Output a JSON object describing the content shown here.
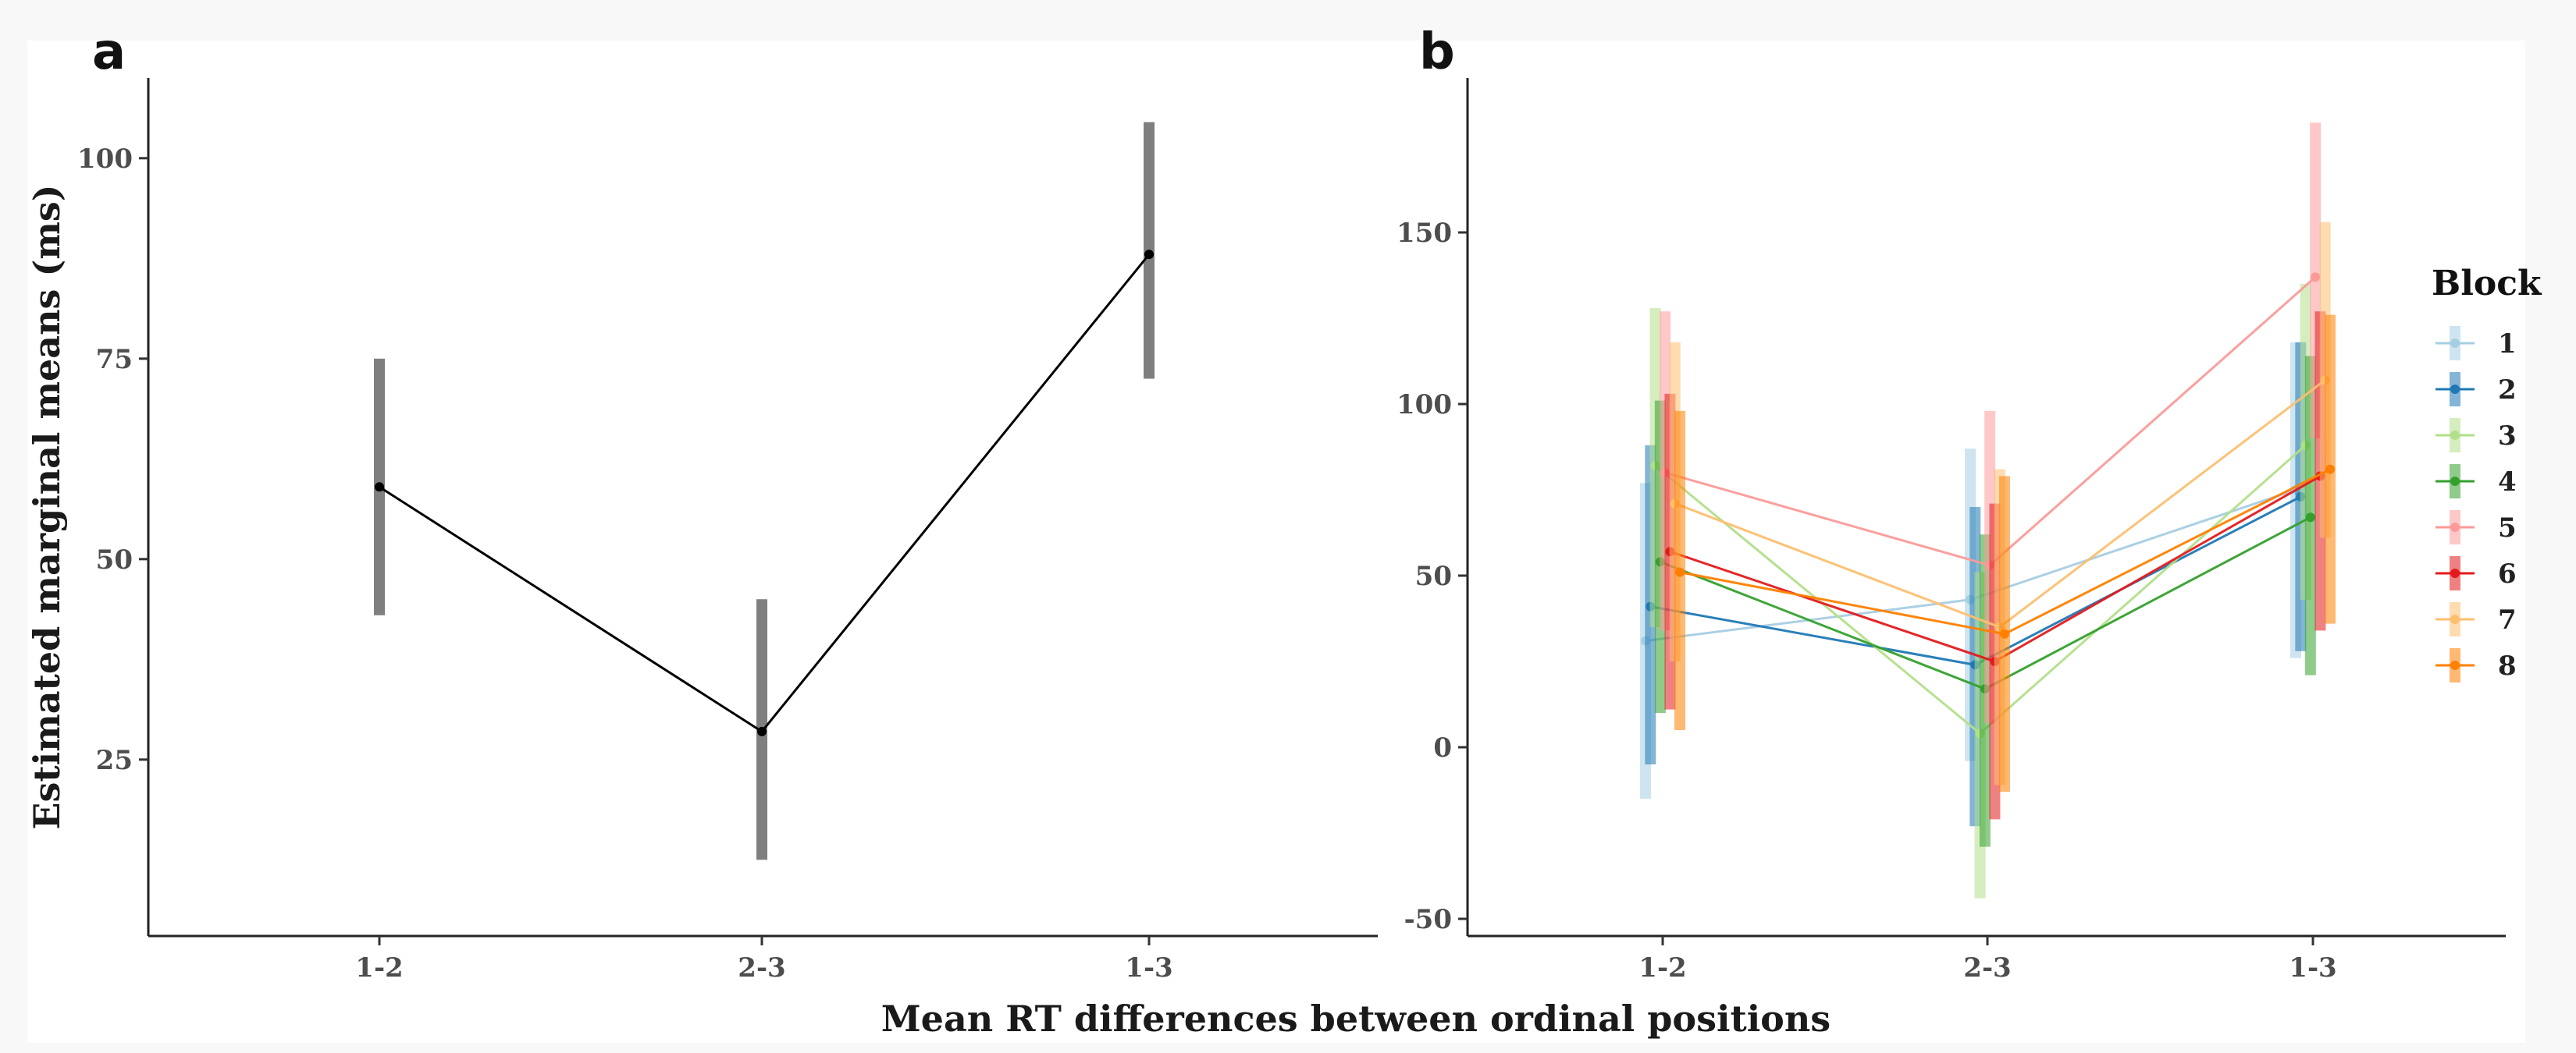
{
  "xlabel": "Mean RT differences between ordinal positions",
  "chart_data": [
    {
      "type": "line",
      "panel": "a",
      "ylabel": "Estimated marginal means (ms)",
      "categories": [
        "1-2",
        "2-3",
        "1-3"
      ],
      "ylim": [
        3,
        110
      ],
      "yticks": [
        25,
        50,
        75,
        100
      ],
      "values": [
        59,
        28.5,
        88
      ],
      "ci_low": [
        43,
        12.5,
        72.5
      ],
      "ci_high": [
        75,
        45,
        104.5
      ],
      "grid": false
    },
    {
      "type": "line",
      "panel": "b",
      "legend_title": "Block",
      "legend_position": "right",
      "categories": [
        "1-2",
        "2-3",
        "1-3"
      ],
      "ylim": [
        -55,
        195
      ],
      "yticks": [
        -50,
        0,
        50,
        100,
        150
      ],
      "grid": false,
      "series": [
        {
          "name": "1",
          "color": "#a6cee3",
          "values": [
            31,
            43,
            75
          ],
          "ci_low": [
            -15,
            -4,
            26
          ],
          "ci_high": [
            77,
            87,
            118
          ]
        },
        {
          "name": "2",
          "color": "#1f78b4",
          "values": [
            41,
            24,
            73
          ],
          "ci_low": [
            -5,
            -23,
            28
          ],
          "ci_high": [
            88,
            70,
            118
          ]
        },
        {
          "name": "3",
          "color": "#b2df8a",
          "values": [
            82,
            4,
            88
          ],
          "ci_low": [
            35,
            -44,
            43
          ],
          "ci_high": [
            128,
            51,
            135
          ]
        },
        {
          "name": "4",
          "color": "#33a02c",
          "values": [
            54,
            17,
            67
          ],
          "ci_low": [
            10,
            -29,
            21
          ],
          "ci_high": [
            101,
            62,
            114
          ]
        },
        {
          "name": "5",
          "color": "#fb9a99",
          "values": [
            80,
            53,
            137
          ],
          "ci_low": [
            34,
            7,
            90
          ],
          "ci_high": [
            127,
            98,
            182
          ]
        },
        {
          "name": "6",
          "color": "#e31a1c",
          "values": [
            57,
            25,
            79
          ],
          "ci_low": [
            11,
            -21,
            34
          ],
          "ci_high": [
            103,
            71,
            127
          ]
        },
        {
          "name": "7",
          "color": "#fdbf6f",
          "values": [
            71,
            35,
            107
          ],
          "ci_low": [
            25,
            -11,
            61
          ],
          "ci_high": [
            118,
            81,
            153
          ]
        },
        {
          "name": "8",
          "color": "#ff7f00",
          "values": [
            51,
            33,
            81
          ],
          "ci_low": [
            5,
            -13,
            36
          ],
          "ci_high": [
            98,
            79,
            126
          ]
        }
      ]
    }
  ]
}
